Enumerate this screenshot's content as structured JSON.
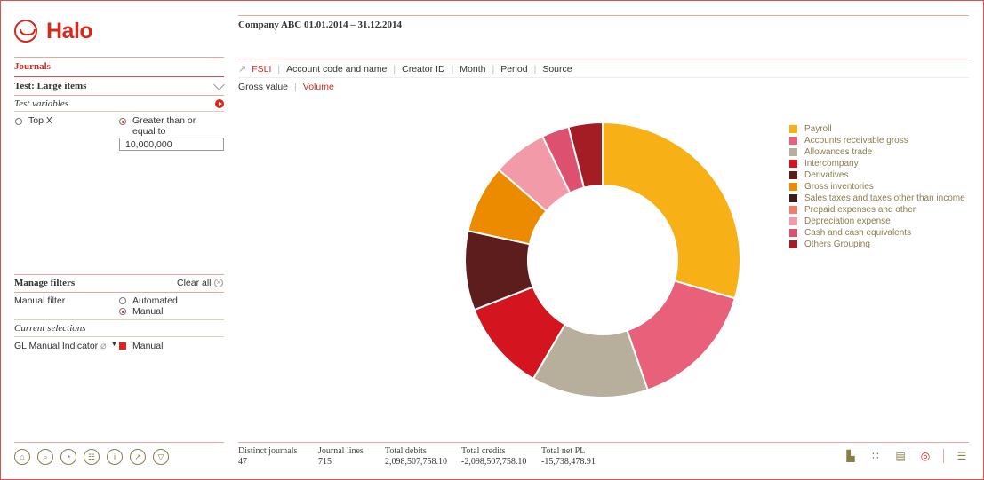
{
  "app": {
    "logo_text": "Halo"
  },
  "left": {
    "section_title": "Journals",
    "test_title": "Test: Large items",
    "test_variables_label": "Test variables",
    "option_top_x": "Top X",
    "option_gte_line1": "Greater than or",
    "option_gte_line2": "equal to",
    "threshold_value": "10,000,000",
    "manage_filters_label": "Manage filters",
    "clear_all_label": "Clear all",
    "manual_filter_label": "Manual filter",
    "option_automated": "Automated",
    "option_manual": "Manual",
    "current_selections_label": "Current selections",
    "selection_field": "GL Manual Indicator",
    "selection_value": "Manual",
    "bottom_icons": [
      "lock-icon",
      "search-icon",
      "dashboard-icon",
      "document-icon",
      "info-icon",
      "export-icon",
      "filter-icon"
    ]
  },
  "main": {
    "company_title": "Company ABC 01.01.2014 – 31.12.2014",
    "dimensions": [
      "FSLI",
      "Account code and name",
      "Creator ID",
      "Month",
      "Period",
      "Source"
    ],
    "active_dimension": "FSLI",
    "measures": [
      "Gross value",
      "Volume"
    ],
    "active_measure": "Volume",
    "kpis": [
      {
        "label": "Distinct journals",
        "value": "47"
      },
      {
        "label": "Journal lines",
        "value": "715"
      },
      {
        "label": "Total debits",
        "value": "2,098,507,758.10"
      },
      {
        "label": "Total credits",
        "value": "-2,098,507,758.10"
      },
      {
        "label": "Total net PL",
        "value": "-15,738,478.91"
      }
    ],
    "tool_icons": [
      "bar-chart-icon",
      "scatter-icon",
      "table-icon",
      "pie-chart-icon",
      "list-icon"
    ]
  },
  "colors": {
    "accent": "#d42a1e",
    "legend_text": "#8a7d4d"
  },
  "chart_data": {
    "type": "pie",
    "donut": true,
    "legend_position": "right",
    "categories": [
      "Payroll",
      "Accounts receivable gross",
      "Allowances trade",
      "Intercompany",
      "Derivatives",
      "Gross inventories",
      "Sales taxes and taxes other than income",
      "Prepaid expenses and other",
      "Depreciation expense",
      "Cash and cash equivalents",
      "Others Grouping"
    ],
    "values": [
      29.5,
      15.2,
      13.7,
      10.7,
      9.3,
      8.0,
      0,
      0,
      6.4,
      3.2,
      4.0
    ],
    "colors": [
      "#f7b117",
      "#e9607a",
      "#b8ae9c",
      "#d41520",
      "#5e1d1d",
      "#ed8b00",
      "#3a1c1c",
      "#f07c6c",
      "#f29aa8",
      "#de5070",
      "#a41c24"
    ]
  }
}
